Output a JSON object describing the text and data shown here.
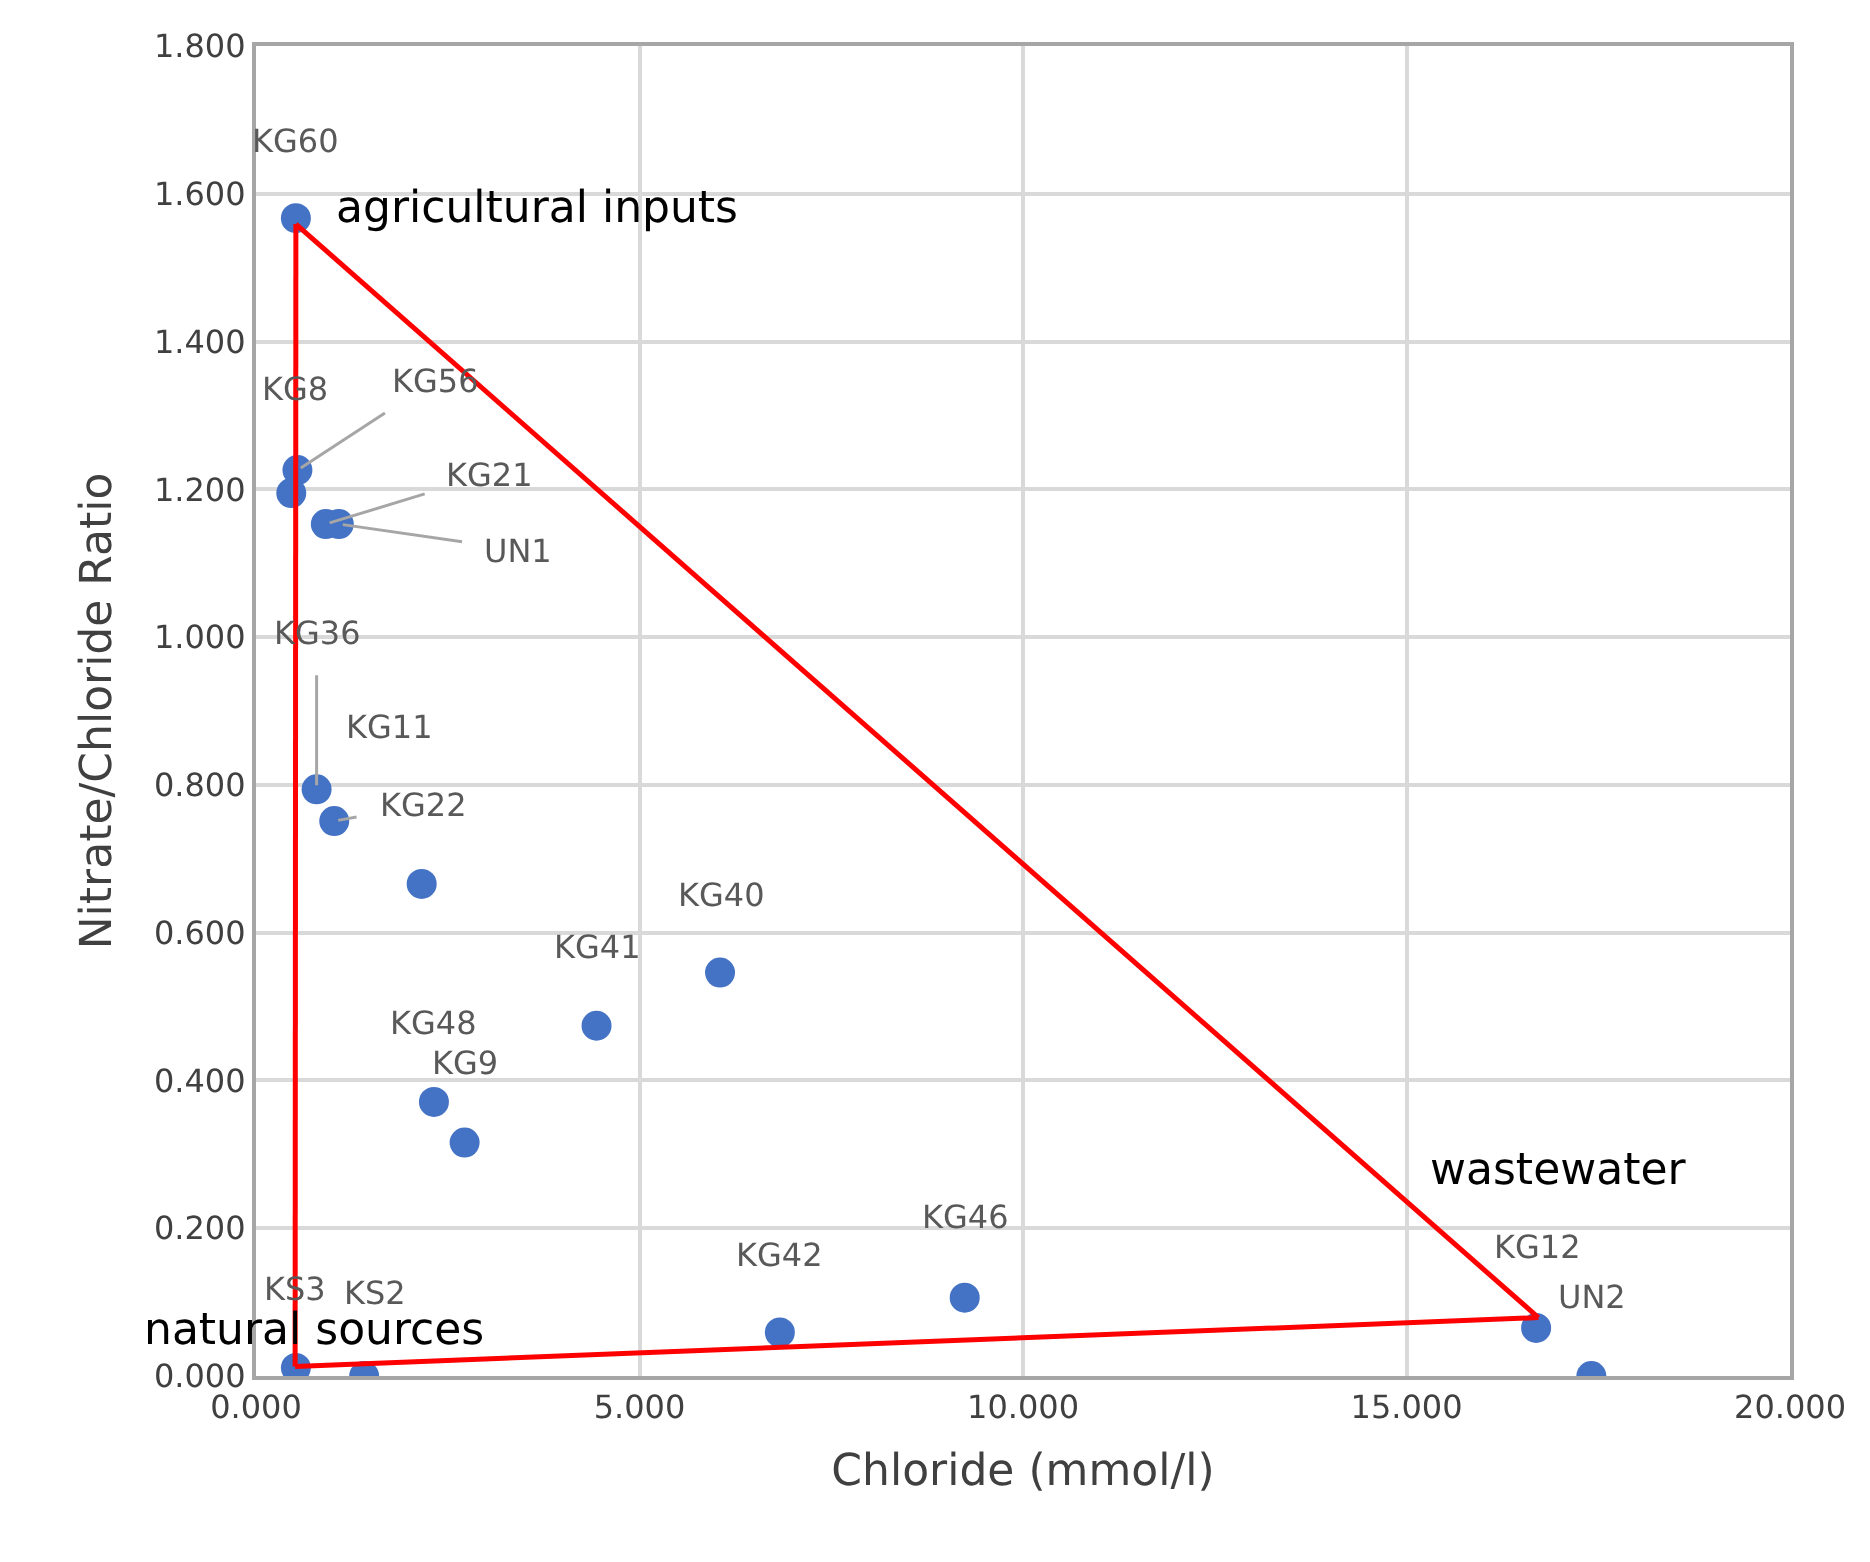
{
  "chart_data": {
    "type": "scatter",
    "xlabel": "Chloride (mmol/l)",
    "ylabel": "Nitrate/Chloride Ratio",
    "xlim": [
      0,
      20
    ],
    "ylim": [
      0,
      1.8
    ],
    "xticks": [
      {
        "value": 0,
        "label": "0.000"
      },
      {
        "value": 5,
        "label": "5.000"
      },
      {
        "value": 10,
        "label": "10.000"
      },
      {
        "value": 15,
        "label": "15.000"
      },
      {
        "value": 20,
        "label": "20.000"
      }
    ],
    "yticks": [
      {
        "value": 0,
        "label": "0.000"
      },
      {
        "value": 0.2,
        "label": "0.200"
      },
      {
        "value": 0.4,
        "label": "0.400"
      },
      {
        "value": 0.6,
        "label": "0.600"
      },
      {
        "value": 0.8,
        "label": "0.800"
      },
      {
        "value": 1.0,
        "label": "1.000"
      },
      {
        "value": 1.2,
        "label": "1.200"
      },
      {
        "value": 1.4,
        "label": "1.400"
      },
      {
        "value": 1.6,
        "label": "1.600"
      },
      {
        "value": 1.8,
        "label": "1.800"
      }
    ],
    "grid": true,
    "marker": "circle",
    "series": [
      {
        "color": "#4472c4",
        "x": [
          0.52,
          0.54,
          0.46,
          0.91,
          1.08,
          0.79,
          2.16,
          1.02,
          4.44,
          6.05,
          2.32,
          2.72,
          6.83,
          9.24,
          0.52,
          1.41,
          16.69,
          17.41
        ],
        "values": [
          1.567,
          1.226,
          1.195,
          1.153,
          1.153,
          0.794,
          0.666,
          0.751,
          0.474,
          0.546,
          0.371,
          0.316,
          0.059,
          0.106,
          0.011,
          0.0,
          0.065,
          0.0
        ]
      },
      {
        "type": "line",
        "color": "#ff0000",
        "marker": "none",
        "line_style": "solid",
        "x": [
          0.52,
          16.72
        ],
        "values": [
          1.559,
          0.079
        ]
      },
      {
        "type": "line",
        "color": "#ff0000",
        "marker": "none",
        "line_style": "solid",
        "x": [
          16.72,
          0.51
        ],
        "values": [
          0.079,
          0.013
        ]
      },
      {
        "type": "line",
        "color": "#ff0000",
        "marker": "none",
        "line_style": "solid",
        "x": [
          0.51,
          0.52
        ],
        "values": [
          0.013,
          1.559
        ]
      }
    ],
    "annotations": [
      {
        "text": "KG60",
        "x": 0.52,
        "y": 1.567
      },
      {
        "text": "KG56",
        "x": 0.54,
        "y": 1.226
      },
      {
        "text": "KG8",
        "x": 0.46,
        "y": 1.195
      },
      {
        "text": "KG21",
        "x": 0.91,
        "y": 1.153
      },
      {
        "text": "UN1",
        "x": 1.08,
        "y": 1.153
      },
      {
        "text": "KG36",
        "x": 0.79,
        "y": 0.794
      },
      "KG11",
      {
        "text": "KG22",
        "x": 1.02,
        "y": 0.751
      },
      {
        "text": "KG41",
        "x": 4.44,
        "y": 0.474
      },
      {
        "text": "KG40",
        "x": 6.05,
        "y": 0.546
      },
      {
        "text": "KG48",
        "x": 2.32,
        "y": 0.371
      },
      {
        "text": "KG9",
        "x": 2.72,
        "y": 0.316
      },
      {
        "text": "KG42",
        "x": 6.83,
        "y": 0.059
      },
      {
        "text": "KG46",
        "x": 9.24,
        "y": 0.106
      },
      {
        "text": "KS3",
        "x": 0.52,
        "y": 0.011
      },
      {
        "text": "KS2",
        "x": 1.41,
        "y": 0.0
      },
      {
        "text": "KG12",
        "x": 16.69,
        "y": 0.065
      },
      {
        "text": "UN2",
        "x": 17.41,
        "y": 0.0
      },
      {
        "text": "agricultural inputs",
        "x": 0.52,
        "y": 1.559
      },
      {
        "text": "wastewater",
        "x": 16.72,
        "y": 0.079
      },
      {
        "text": "natural sources",
        "x": 0.51,
        "y": 0.013
      }
    ]
  }
}
